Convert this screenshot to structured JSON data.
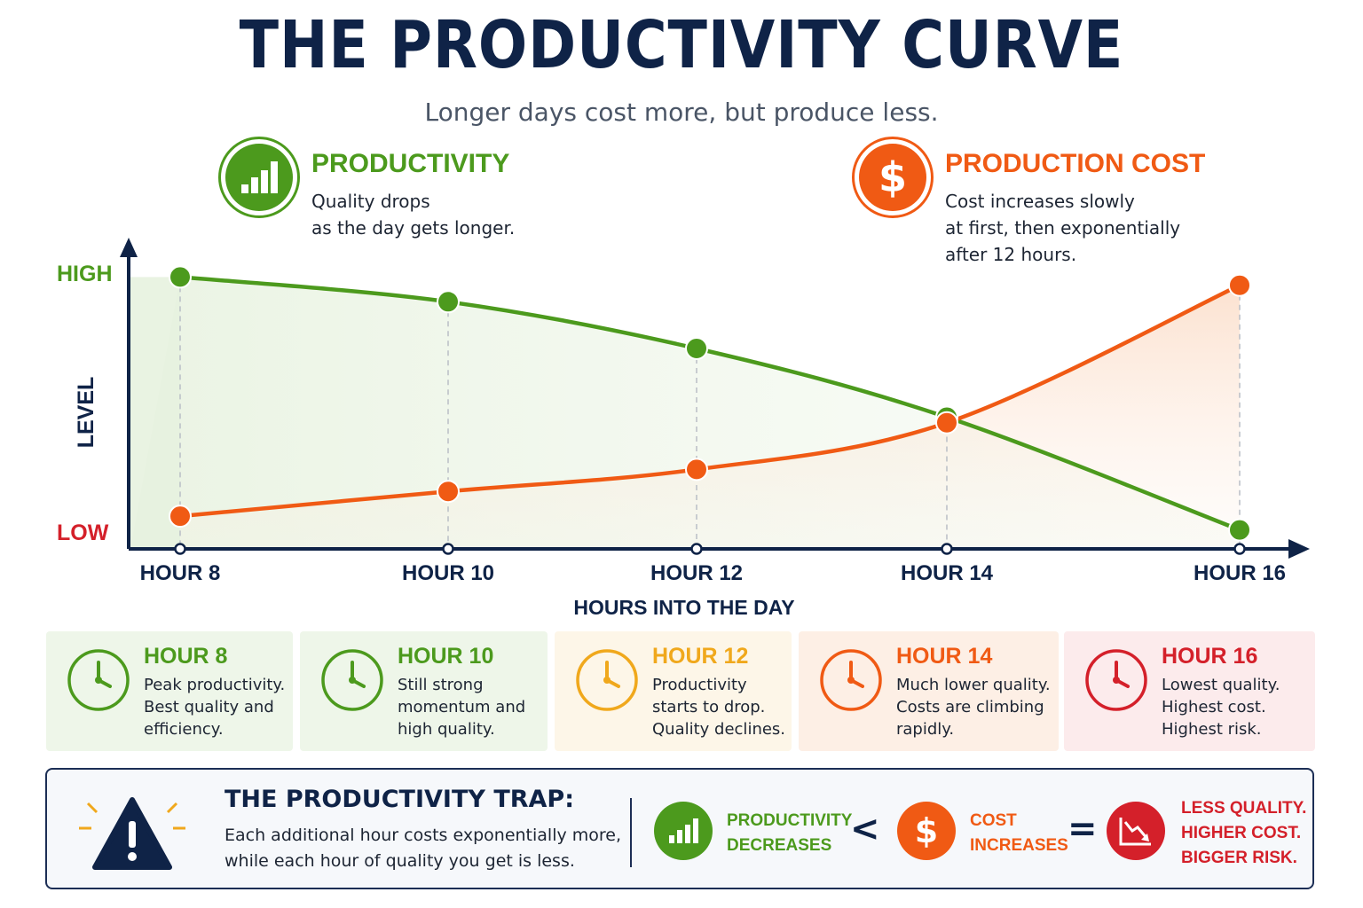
{
  "title": "THE PRODUCTIVITY CURVE",
  "subtitle": "Longer days cost more, but produce less.",
  "colors": {
    "navy": "#0f2347",
    "green": "#4c9a1d",
    "orange": "#f05a14",
    "amber": "#f0a81c",
    "red": "#d4202a"
  },
  "legend": {
    "productivity": {
      "icon": "bar-chart-icon",
      "title": "PRODUCTIVITY",
      "lines": [
        "Quality drops",
        "as the day gets longer."
      ]
    },
    "cost": {
      "icon": "dollar-icon",
      "title": "PRODUCTION COST",
      "lines": [
        "Cost increases slowly",
        "at first, then exponentially",
        "after 12 hours."
      ]
    }
  },
  "chart_data": {
    "type": "line",
    "categories": [
      "HOUR 8",
      "HOUR 10",
      "HOUR 12",
      "HOUR 14",
      "HOUR 16"
    ],
    "series": [
      {
        "name": "PRODUCTIVITY",
        "color": "#4c9a1d",
        "values": [
          0.96,
          0.87,
          0.7,
          0.45,
          0.04
        ]
      },
      {
        "name": "PRODUCTION COST",
        "color": "#f05a14",
        "values": [
          0.09,
          0.18,
          0.26,
          0.43,
          0.93
        ]
      }
    ],
    "ylabel": "LEVEL",
    "xlabel": "HOURS INTO THE DAY",
    "y_tick_labels": {
      "high": "HIGH",
      "low": "LOW"
    },
    "ylim": [
      0,
      1
    ],
    "grid": "vertical dashed guides at each hour",
    "legend": "top"
  },
  "cards": [
    {
      "title": "HOUR 8",
      "lines": [
        "Peak productivity.",
        "Best quality and",
        "efficiency."
      ],
      "color": "#4c9a1d",
      "bg": "#eef6e9"
    },
    {
      "title": "HOUR 10",
      "lines": [
        "Still strong",
        "momentum and",
        "high quality."
      ],
      "color": "#4c9a1d",
      "bg": "#eef6e9"
    },
    {
      "title": "HOUR 12",
      "lines": [
        "Productivity",
        "starts to drop.",
        "Quality declines."
      ],
      "color": "#f0a81c",
      "bg": "#fdf6e8"
    },
    {
      "title": "HOUR 14",
      "lines": [
        "Much lower quality.",
        "Costs are climbing",
        "rapidly."
      ],
      "color": "#f05a14",
      "bg": "#fdefe5"
    },
    {
      "title": "HOUR 16",
      "lines": [
        "Lowest quality.",
        "Highest cost.",
        "Highest risk."
      ],
      "color": "#d4202a",
      "bg": "#fcebec"
    }
  ],
  "trap": {
    "icon": "warning-icon",
    "title": "THE PRODUCTIVITY TRAP:",
    "lines": [
      "Each additional hour costs exponentially more,",
      "while each hour of quality you get is less."
    ],
    "eq1": [
      "PRODUCTIVITY",
      "DECREASES"
    ],
    "op1": "<",
    "eq2": [
      "COST",
      "INCREASES"
    ],
    "op2": "=",
    "result": [
      "LESS QUALITY.",
      "HIGHER COST.",
      "BIGGER RISK."
    ],
    "result_icon": "trend-down-icon"
  }
}
